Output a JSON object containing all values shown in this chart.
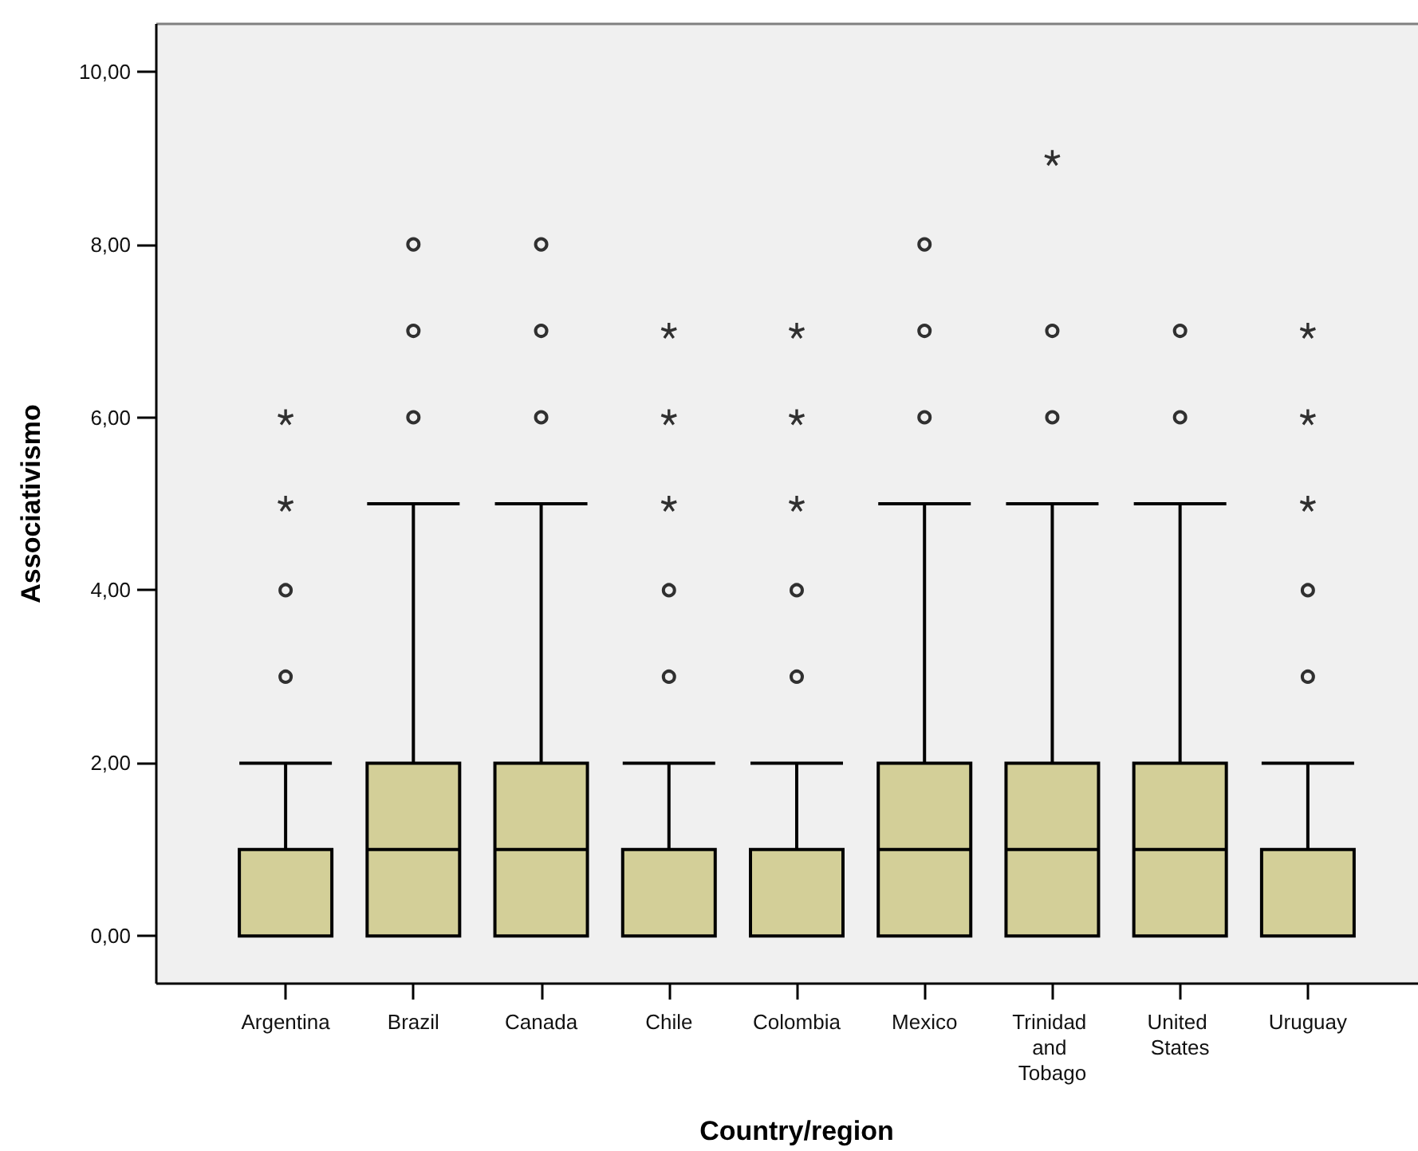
{
  "chart_data": {
    "type": "box",
    "xlabel": "Country/region",
    "ylabel": "Associativismo",
    "marker": "circle",
    "categories": [
      "Argentina",
      "Brazil",
      "Canada",
      "Chile",
      "Colombia",
      "Mexico",
      "Trinidad and Tobago",
      "United States",
      "Uruguay"
    ],
    "series": [
      {
        "color": "#d3cf98",
        "boxes": [
          {
            "low": 0,
            "q1": 0,
            "median": 0,
            "q3": 1,
            "high": 2,
            "outliers": [
              3,
              4
            ]
          },
          {
            "low": 0,
            "q1": 0,
            "median": 1,
            "q3": 2,
            "high": 5,
            "outliers": [
              6,
              7,
              8
            ]
          },
          {
            "low": 0,
            "q1": 0,
            "median": 1,
            "q3": 2,
            "high": 5,
            "outliers": [
              6,
              7,
              8
            ]
          },
          {
            "low": 0,
            "q1": 0,
            "median": 0,
            "q3": 1,
            "high": 2,
            "outliers": [
              3,
              4
            ]
          },
          {
            "low": 0,
            "q1": 0,
            "median": 0,
            "q3": 1,
            "high": 2,
            "outliers": [
              3,
              4
            ]
          },
          {
            "low": 0,
            "q1": 0,
            "median": 1,
            "q3": 2,
            "high": 5,
            "outliers": [
              6,
              7,
              8
            ]
          },
          {
            "low": 0,
            "q1": 0,
            "median": 1,
            "q3": 2,
            "high": 5,
            "outliers": [
              6,
              7
            ]
          },
          {
            "low": 0,
            "q1": 0,
            "median": 1,
            "q3": 2,
            "high": 5,
            "outliers": [
              6,
              7
            ]
          },
          {
            "low": 0,
            "q1": 0,
            "median": 0,
            "q3": 1,
            "high": 2,
            "outliers": [
              3,
              4
            ]
          }
        ]
      },
      {
        "type": "scatter",
        "marker": "star",
        "color": "#000000",
        "x": [
          "Argentina",
          "Argentina",
          "Chile",
          "Chile",
          "Chile",
          "Colombia",
          "Colombia",
          "Colombia",
          "Trinidad and Tobago",
          "Uruguay",
          "Uruguay",
          "Uruguay"
        ],
        "values": [
          5,
          6,
          5,
          6,
          7,
          5,
          6,
          7,
          9,
          5,
          6,
          7
        ]
      }
    ],
    "ylim": [
      -0.55,
      10.55
    ],
    "yticks": [
      {
        "value": 0,
        "label": "0,00"
      },
      {
        "value": 2,
        "label": "2,00"
      },
      {
        "value": 4,
        "label": "4,00"
      },
      {
        "value": 6,
        "label": "6,00"
      },
      {
        "value": 8,
        "label": "8,00"
      },
      {
        "value": 10,
        "label": "10,00"
      }
    ]
  }
}
